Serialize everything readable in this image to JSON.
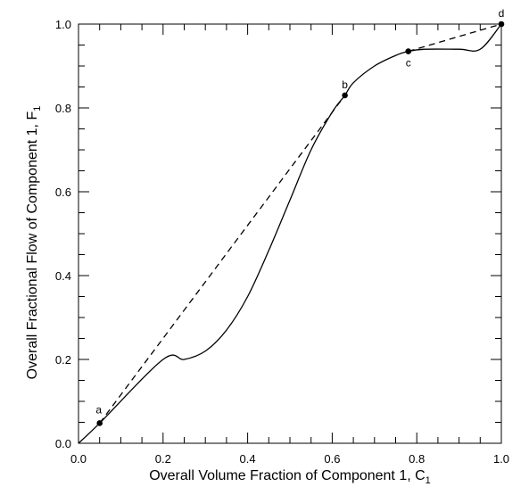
{
  "chart_data": {
    "type": "line",
    "xlabel": "Overall Volume Fraction of Component 1, C",
    "xlabel_sub": "1",
    "ylabel": "Overall Fractional Flow of Component 1, F",
    "ylabel_sub": "1",
    "xlim": [
      0,
      1
    ],
    "ylim": [
      0,
      1
    ],
    "x_ticks": [
      {
        "value": 0.0,
        "label": "0.0"
      },
      {
        "value": 0.2,
        "label": "0.2"
      },
      {
        "value": 0.4,
        "label": "0.4"
      },
      {
        "value": 0.6,
        "label": "0.6"
      },
      {
        "value": 0.8,
        "label": "0.8"
      },
      {
        "value": 1.0,
        "label": "1.0"
      }
    ],
    "y_ticks": [
      {
        "value": 0.0,
        "label": "0.0"
      },
      {
        "value": 0.2,
        "label": "0.2"
      },
      {
        "value": 0.4,
        "label": "0.4"
      },
      {
        "value": 0.6,
        "label": "0.6"
      },
      {
        "value": 0.8,
        "label": "0.8"
      },
      {
        "value": 1.0,
        "label": "1.0"
      }
    ],
    "minor_tick_step": 0.05,
    "grid": false,
    "series": [
      {
        "style": "solid",
        "x": [
          0,
          0.05,
          0.2,
          0.25,
          0.3,
          0.35,
          0.4,
          0.45,
          0.5,
          0.55,
          0.6,
          0.63,
          0.65,
          0.7,
          0.75,
          0.78,
          0.82,
          0.9,
          0.95,
          1.0
        ],
        "y": [
          0,
          0.048,
          0.2,
          0.2,
          0.22,
          0.27,
          0.35,
          0.46,
          0.58,
          0.7,
          0.79,
          0.83,
          0.86,
          0.9,
          0.925,
          0.935,
          0.94,
          0.94,
          0.94,
          1.0
        ]
      },
      {
        "style": "dashed",
        "x": [
          0.05,
          0.63
        ],
        "y": [
          0.048,
          0.83
        ]
      },
      {
        "style": "dashed",
        "x": [
          0.78,
          1.0
        ],
        "y": [
          0.935,
          1.0
        ]
      }
    ],
    "points": [
      {
        "label": "a",
        "x": 0.05,
        "y": 0.048,
        "label_pos": "above-left"
      },
      {
        "label": "b",
        "x": 0.63,
        "y": 0.83,
        "label_pos": "above"
      },
      {
        "label": "c",
        "x": 0.78,
        "y": 0.935,
        "label_pos": "below"
      },
      {
        "label": "d",
        "x": 1.0,
        "y": 1.0,
        "label_pos": "above"
      }
    ]
  }
}
